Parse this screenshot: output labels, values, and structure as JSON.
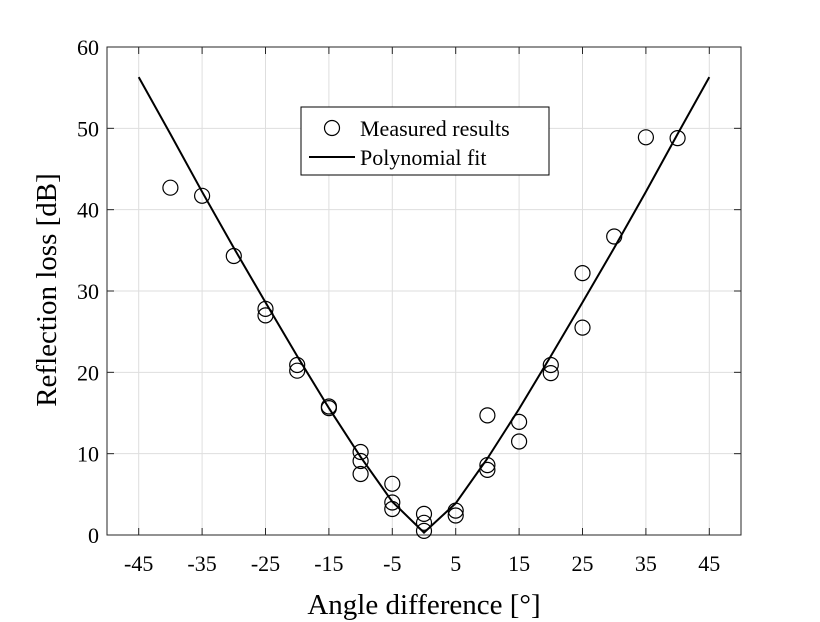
{
  "chart_data": {
    "type": "scatter",
    "title": "",
    "xlabel": "Angle difference [°]",
    "ylabel": "Reflection loss [dB]",
    "xlim": [
      -50,
      50
    ],
    "ylim": [
      0,
      60
    ],
    "xticks": [
      -45,
      -35,
      -25,
      -15,
      -5,
      5,
      15,
      25,
      35,
      45
    ],
    "yticks": [
      0,
      10,
      20,
      30,
      40,
      50,
      60
    ],
    "grid": true,
    "legend_position": "top-center",
    "series": [
      {
        "name": "Measured results",
        "kind": "scatter",
        "marker": "open-circle",
        "color": "#000000",
        "points": [
          [
            -40,
            42.7
          ],
          [
            -35,
            41.7
          ],
          [
            -30,
            34.3
          ],
          [
            -25,
            27.8
          ],
          [
            -25,
            27.0
          ],
          [
            -20,
            20.9
          ],
          [
            -20,
            20.2
          ],
          [
            -15,
            15.8
          ],
          [
            -15,
            15.6
          ],
          [
            -10,
            10.2
          ],
          [
            -10,
            9.1
          ],
          [
            -10,
            7.5
          ],
          [
            -5,
            6.3
          ],
          [
            -5,
            4.0
          ],
          [
            -5,
            3.2
          ],
          [
            0,
            2.6
          ],
          [
            0,
            1.5
          ],
          [
            0,
            0.5
          ],
          [
            5,
            3.0
          ],
          [
            5,
            2.4
          ],
          [
            10,
            14.7
          ],
          [
            10,
            8.6
          ],
          [
            10,
            8.0
          ],
          [
            15,
            13.9
          ],
          [
            15,
            11.5
          ],
          [
            20,
            20.9
          ],
          [
            20,
            19.9
          ],
          [
            25,
            32.2
          ],
          [
            25,
            25.5
          ],
          [
            30,
            36.7
          ],
          [
            35,
            48.9
          ],
          [
            40,
            48.8
          ]
        ]
      },
      {
        "name": "Polynomial fit",
        "kind": "line",
        "color": "#000000",
        "points": [
          [
            -45,
            56.3
          ],
          [
            -40,
            49.3
          ],
          [
            -35,
            42.2
          ],
          [
            -30,
            35.3
          ],
          [
            -25,
            28.6
          ],
          [
            -20,
            22.0
          ],
          [
            -15,
            15.6
          ],
          [
            -10,
            9.6
          ],
          [
            -5,
            4.1
          ],
          [
            0,
            0.3
          ],
          [
            5,
            3.9
          ],
          [
            10,
            9.4
          ],
          [
            15,
            15.5
          ],
          [
            20,
            22.0
          ],
          [
            25,
            28.6
          ],
          [
            30,
            35.3
          ],
          [
            35,
            42.2
          ],
          [
            40,
            49.3
          ],
          [
            45,
            56.3
          ]
        ]
      }
    ]
  }
}
